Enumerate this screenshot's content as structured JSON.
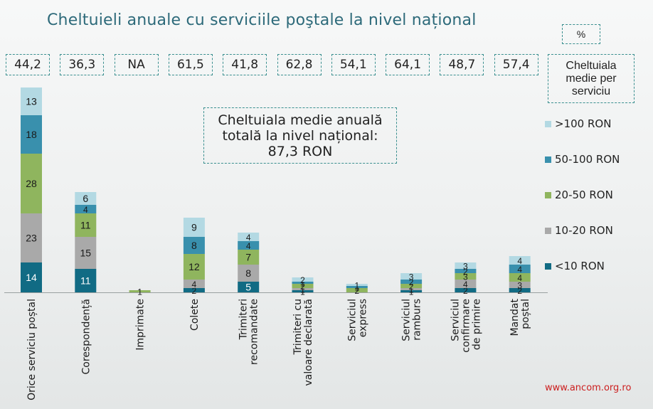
{
  "title": "Cheltuieli anuale cu serviciile poştale la nivel național",
  "unit_box": "%",
  "avg_label": "Cheltuiala medie per serviciu",
  "total_box": {
    "line1": "Cheltuiala medie anuală",
    "line2": "totală la nivel național:",
    "line3": "87,3 RON"
  },
  "source": "www.ancom.org.ro",
  "colors": {
    "<10 RON": "#116b84",
    "10-20 RON": "#a9a9a9",
    "20-50 RON": "#8fb55e",
    "50-100 RON": "#3990ad",
    ">100 RON": "#b3d9e3",
    "border": "#3a8f8f",
    "title": "#2d6a7a"
  },
  "chart_data": {
    "type": "bar",
    "stacked": true,
    "categories": [
      "Orice serviciu poștal",
      "Corespondență",
      "Imprimate",
      "Colete",
      "Trimiteri recomandate",
      "Trimiteri cu valoare declarată",
      "Serviciul express",
      "Serviciul ramburs",
      "Serviciul confirmare de primire",
      "Mandat poștal"
    ],
    "category_lines": [
      [
        "Orice serviciu poștal"
      ],
      [
        "Corespondență"
      ],
      [
        "Imprimate"
      ],
      [
        "Colete"
      ],
      [
        "Trimiteri",
        "recomandate"
      ],
      [
        "Trimiteri cu",
        "valoare declarată"
      ],
      [
        "Serviciul",
        "express"
      ],
      [
        "Serviciul",
        "ramburs"
      ],
      [
        "Serviciul",
        "confirmare",
        "de primire"
      ],
      [
        "Mandat",
        "poștal"
      ]
    ],
    "series": [
      {
        "name": "<10 RON",
        "values": [
          14,
          11,
          0,
          2,
          5,
          1,
          0,
          1,
          2,
          2
        ]
      },
      {
        "name": "10-20 RON",
        "values": [
          23,
          15,
          0,
          4,
          8,
          1,
          0,
          1,
          4,
          3
        ]
      },
      {
        "name": "20-50 RON",
        "values": [
          28,
          11,
          1,
          12,
          7,
          2,
          2,
          2,
          3,
          4
        ]
      },
      {
        "name": "50-100 RON",
        "values": [
          18,
          4,
          0,
          8,
          4,
          1,
          1,
          2,
          2,
          4
        ]
      },
      {
        "name": ">100 RON",
        "values": [
          13,
          6,
          0,
          9,
          4,
          2,
          1,
          3,
          3,
          4
        ]
      }
    ],
    "average_spend": [
      "44,2",
      "36,3",
      "NA",
      "61,5",
      "41,8",
      "62,8",
      "54,1",
      "64,1",
      "48,7",
      "57,4"
    ],
    "legend_order": [
      ">100 RON",
      "50-100 RON",
      "20-50 RON",
      "10-20 RON",
      "<10 RON"
    ],
    "ylim": [
      0,
      100
    ],
    "grid": false,
    "legend_position": "right"
  }
}
